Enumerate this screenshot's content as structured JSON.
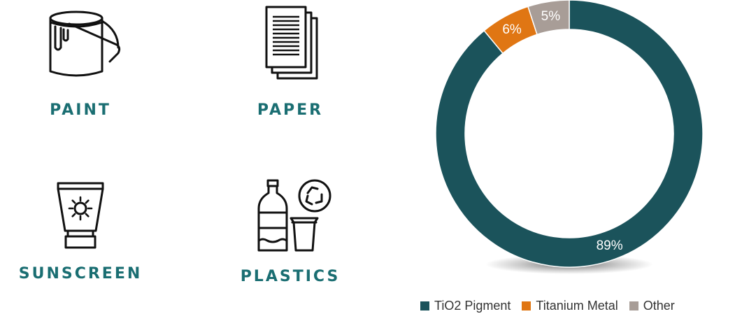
{
  "colors": {
    "label": "#1a6e72"
  },
  "applications": [
    {
      "label": "PAINT",
      "icon": "paint-bucket-icon"
    },
    {
      "label": "PAPER",
      "icon": "paper-stack-icon"
    },
    {
      "label": "SUNSCREEN",
      "icon": "sunscreen-tube-icon"
    },
    {
      "label": "PLASTICS",
      "icon": "plastic-bottle-recycle-icon"
    }
  ],
  "chart_data": {
    "type": "pie",
    "variant": "donut",
    "categories": [
      "TiO2 Pigment",
      "Titanium Metal",
      "Other"
    ],
    "values": [
      89,
      6,
      5
    ],
    "data_labels": [
      "89%",
      "6%",
      "5%"
    ],
    "colors": [
      "#1b535b",
      "#e07613",
      "#a89d97"
    ],
    "title": "",
    "legend_position": "bottom"
  }
}
